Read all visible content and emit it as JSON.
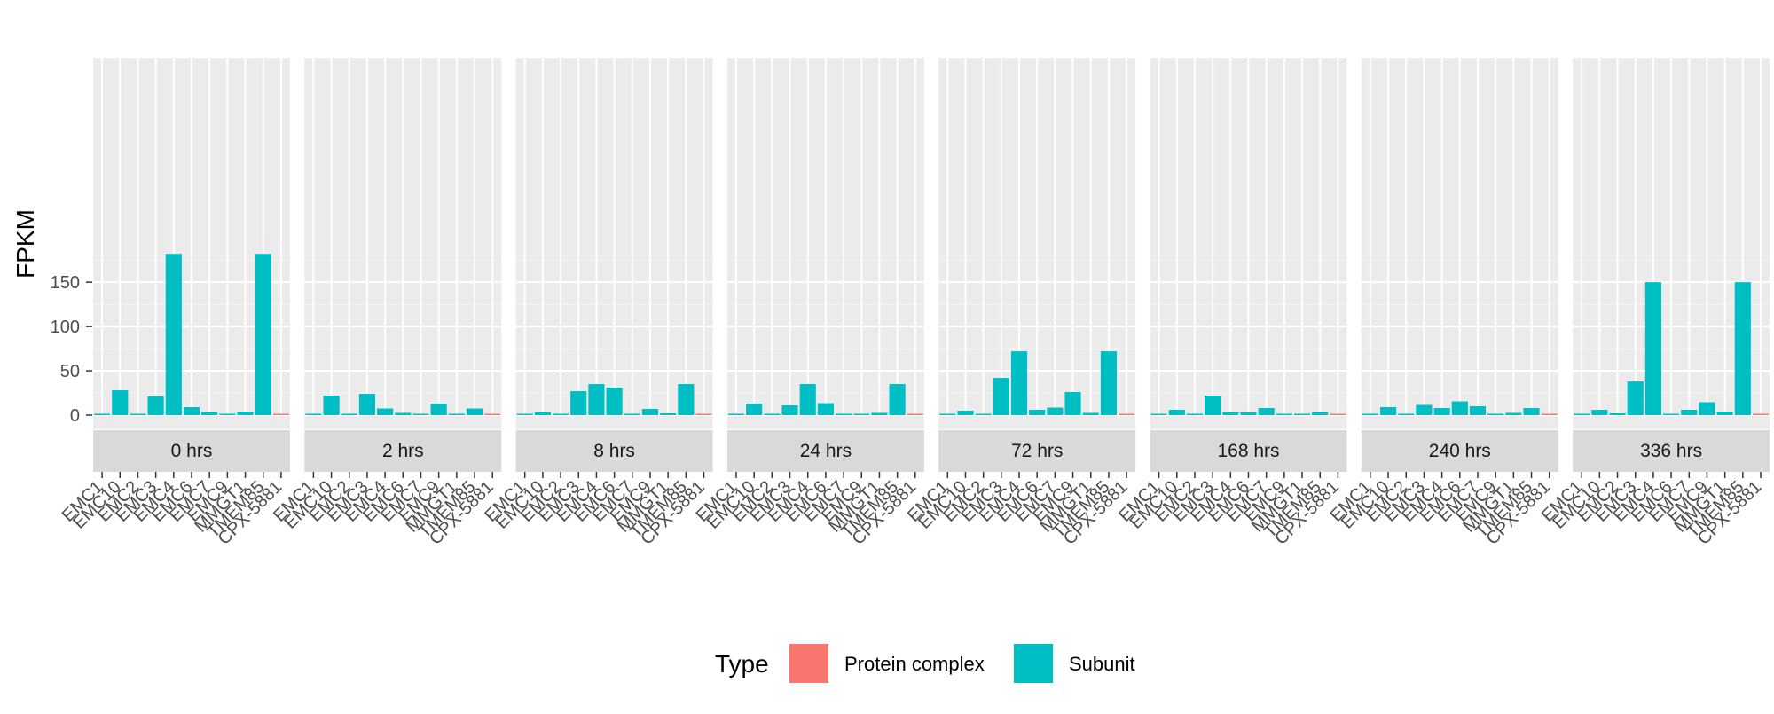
{
  "chart_data": {
    "type": "bar",
    "ylabel": "FPKM",
    "xlabel": "",
    "ylim": [
      0,
      190
    ],
    "yticks": [
      0,
      50,
      100,
      150
    ],
    "grid": true,
    "legend": {
      "title": "Type",
      "position": "bottom",
      "entries": [
        {
          "name": "Protein complex",
          "color": "#F8766D"
        },
        {
          "name": "Subunit",
          "color": "#00BFC4"
        }
      ]
    },
    "categories": [
      "EMC1",
      "EMC10",
      "EMC2",
      "EMC3",
      "EMC4",
      "EMC6",
      "EMC7",
      "EMC9",
      "MMGT1",
      "TMEM85",
      "CPX-5881"
    ],
    "category_types": [
      "Subunit",
      "Subunit",
      "Subunit",
      "Subunit",
      "Subunit",
      "Subunit",
      "Subunit",
      "Subunit",
      "Subunit",
      "Subunit",
      "Protein complex"
    ],
    "panels": [
      {
        "name": "0 hrs",
        "values": [
          1.5,
          28,
          0.5,
          21,
          182,
          9,
          3.5,
          1.5,
          4,
          182,
          0.5
        ]
      },
      {
        "name": "2 hrs",
        "values": [
          1,
          22,
          1,
          24,
          7.5,
          2.5,
          0.5,
          13,
          1,
          7.5,
          0.5
        ]
      },
      {
        "name": "8 hrs",
        "values": [
          1,
          3.5,
          1,
          27,
          35,
          31,
          0,
          7,
          2,
          35,
          0.5
        ]
      },
      {
        "name": "24 hrs",
        "values": [
          1,
          13,
          1,
          11,
          35,
          13.5,
          0,
          1,
          2.5,
          35,
          0.5
        ]
      },
      {
        "name": "72 hrs",
        "values": [
          1,
          5,
          1,
          42,
          72,
          6,
          8.5,
          26,
          2.5,
          72,
          0.5
        ]
      },
      {
        "name": "168 hrs",
        "values": [
          0,
          6,
          1,
          22,
          3.5,
          3,
          8,
          1,
          1,
          3.5,
          0.5
        ]
      },
      {
        "name": "240 hrs",
        "values": [
          0,
          9,
          0,
          11.5,
          8,
          15.5,
          10,
          1,
          2.5,
          8,
          0.5
        ]
      },
      {
        "name": "336 hrs",
        "values": [
          1,
          6,
          2,
          38,
          150,
          1,
          6,
          14.5,
          4,
          150,
          0.5
        ]
      }
    ]
  }
}
